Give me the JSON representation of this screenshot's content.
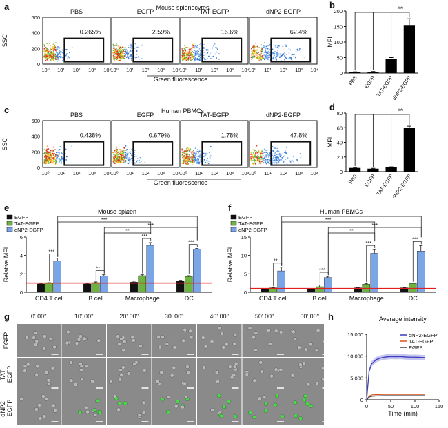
{
  "panels": {
    "a": {
      "letter": "a",
      "title": "Mouse splenocytes",
      "ylabel": "SSC",
      "xlabel": "Green fluorescence",
      "yticks": [
        "600",
        "400",
        "200",
        "0"
      ],
      "xticks": [
        "10⁰",
        "10¹",
        "10²",
        "10³",
        "10⁴"
      ],
      "plots": [
        {
          "name": "PBS",
          "pct": "0.265%"
        },
        {
          "name": "EGFP",
          "pct": "2.59%"
        },
        {
          "name": "TAT-EGFP",
          "pct": "16.6%"
        },
        {
          "name": "dNP2-EGFP",
          "pct": "62.4%"
        }
      ]
    },
    "c": {
      "letter": "c",
      "title": "Human PBMCs",
      "ylabel": "SSC",
      "xlabel": "Green fluorescence",
      "yticks": [
        "600",
        "400",
        "200",
        "0"
      ],
      "xticks": [
        "10⁰",
        "10¹",
        "10²",
        "10³",
        "10⁴"
      ],
      "plots": [
        {
          "name": "PBS",
          "pct": "0.438%"
        },
        {
          "name": "EGFP",
          "pct": "0.679%"
        },
        {
          "name": "TAT-EGFP",
          "pct": "1.78%"
        },
        {
          "name": "dNP2-EGFP",
          "pct": "47.8%"
        }
      ]
    },
    "g": {
      "letter": "g",
      "times": [
        "0' 00''",
        "10' 00''",
        "20' 00''",
        "30' 00''",
        "40' 00''",
        "50' 00''",
        "60' 00''"
      ],
      "rows": [
        "EGFP",
        "TAT-\nEGFP",
        "dNP2-\nEGFP"
      ],
      "row_labels": [
        [
          "EGFP"
        ],
        [
          "TAT-",
          "EGFP"
        ],
        [
          "dNP2-",
          "EGFP"
        ]
      ]
    }
  },
  "sig": "**",
  "chart_data": [
    {
      "id": "b",
      "letter": "b",
      "type": "bar",
      "categories": [
        "PBS",
        "EGFP",
        "TAT-EGFP",
        "dNP2-EGFP"
      ],
      "values": [
        3,
        4,
        45,
        155
      ],
      "errors": [
        1,
        1,
        5,
        20
      ],
      "ylabel": "MFI",
      "ylim": [
        0,
        200
      ],
      "yticks": [
        0,
        50,
        100,
        150,
        200
      ],
      "colors": [
        "#000000",
        "#000000",
        "#000000",
        "#000000"
      ]
    },
    {
      "id": "d",
      "letter": "d",
      "type": "bar",
      "categories": [
        "PBS",
        "EGFP",
        "TAT-EGFP",
        "dNP2-EGFP"
      ],
      "values": [
        5,
        4,
        6,
        60
      ],
      "errors": [
        0.5,
        0.5,
        0.5,
        2
      ],
      "ylabel": "MFI",
      "ylim": [
        0,
        80
      ],
      "yticks": [
        0,
        20,
        40,
        60,
        80
      ],
      "colors": [
        "#000000",
        "#000000",
        "#000000",
        "#000000"
      ]
    },
    {
      "id": "e",
      "letter": "e",
      "type": "bar",
      "title": "Mouse spleen",
      "ylabel": "Relative MFI",
      "ylim": [
        0,
        6
      ],
      "yticks": [
        0,
        2,
        4,
        6
      ],
      "categories": [
        "CD4 T cell",
        "B cell",
        "Macrophage",
        "DC"
      ],
      "refline": 1,
      "series": [
        {
          "name": "EGFP",
          "color": "#111111",
          "values": [
            0.9,
            0.9,
            1.1,
            1.2
          ],
          "errors": [
            0.05,
            0.05,
            0.1,
            0.1
          ]
        },
        {
          "name": "TAT-EGFP",
          "color": "#6db33f",
          "values": [
            1.0,
            1.05,
            1.8,
            1.7
          ],
          "errors": [
            0.05,
            0.08,
            0.1,
            0.1
          ]
        },
        {
          "name": "dNP2-EGFP",
          "color": "#7aa6e8",
          "values": [
            3.4,
            1.75,
            5.1,
            4.7
          ],
          "errors": [
            0.3,
            0.15,
            0.3,
            0.05
          ]
        }
      ],
      "sig_labels": [
        "***",
        "**",
        "***",
        "***",
        "**",
        "***",
        "***",
        "**"
      ]
    },
    {
      "id": "f",
      "letter": "f",
      "type": "bar",
      "title": "Human PBMCs",
      "ylabel": "Relative MFI",
      "ylim": [
        0,
        15
      ],
      "yticks": [
        0,
        5,
        10,
        15
      ],
      "categories": [
        "CD4 T cell",
        "B cell",
        "Macrophage",
        "DC"
      ],
      "refline": 1,
      "series": [
        {
          "name": "EGFP",
          "color": "#111111",
          "values": [
            1.0,
            0.8,
            1.2,
            1.2
          ],
          "errors": [
            0.05,
            0.05,
            0.1,
            0.1
          ]
        },
        {
          "name": "TAT-EGFP",
          "color": "#6db33f",
          "values": [
            1.2,
            1.5,
            2.2,
            2.4
          ],
          "errors": [
            0.1,
            0.5,
            0.2,
            0.1
          ]
        },
        {
          "name": "dNP2-EGFP",
          "color": "#7aa6e8",
          "values": [
            5.8,
            4.0,
            10.6,
            11.2
          ],
          "errors": [
            1.0,
            0.3,
            1.0,
            1.5
          ]
        }
      ],
      "sig_labels": [
        "**",
        "***",
        "***",
        "***",
        "**",
        "***",
        "***",
        "**"
      ]
    },
    {
      "id": "h",
      "letter": "h",
      "type": "line",
      "title": "Average intensity",
      "xlabel": "Time (min)",
      "ylabel": "",
      "xlim": [
        0,
        150
      ],
      "ylim": [
        0,
        15000
      ],
      "xticks": [
        0,
        50,
        100,
        150
      ],
      "yticks": [
        0,
        5000,
        10000,
        15000
      ],
      "ytick_labels": [
        "0",
        "5,000",
        "10,000",
        "15,000"
      ],
      "series": [
        {
          "name": "dNP2-EGFP",
          "color": "#3b3bbf",
          "x": [
            0,
            5,
            10,
            20,
            30,
            40,
            50,
            60,
            70,
            80,
            90,
            100,
            110,
            120
          ],
          "y": [
            0,
            6500,
            8200,
            9200,
            9600,
            9800,
            9900,
            9850,
            9900,
            9800,
            9750,
            9750,
            9700,
            9650
          ]
        },
        {
          "name": "TAT-EGFP",
          "color": "#d9541e",
          "x": [
            0,
            5,
            10,
            20,
            40,
            60,
            80,
            100,
            120
          ],
          "y": [
            0,
            800,
            1100,
            1200,
            1250,
            1250,
            1250,
            1250,
            1250
          ]
        },
        {
          "name": "EGFP",
          "color": "#444444",
          "x": [
            0,
            5,
            10,
            20,
            40,
            60,
            80,
            100,
            120
          ],
          "y": [
            0,
            600,
            800,
            900,
            950,
            950,
            950,
            950,
            950
          ]
        }
      ]
    }
  ]
}
